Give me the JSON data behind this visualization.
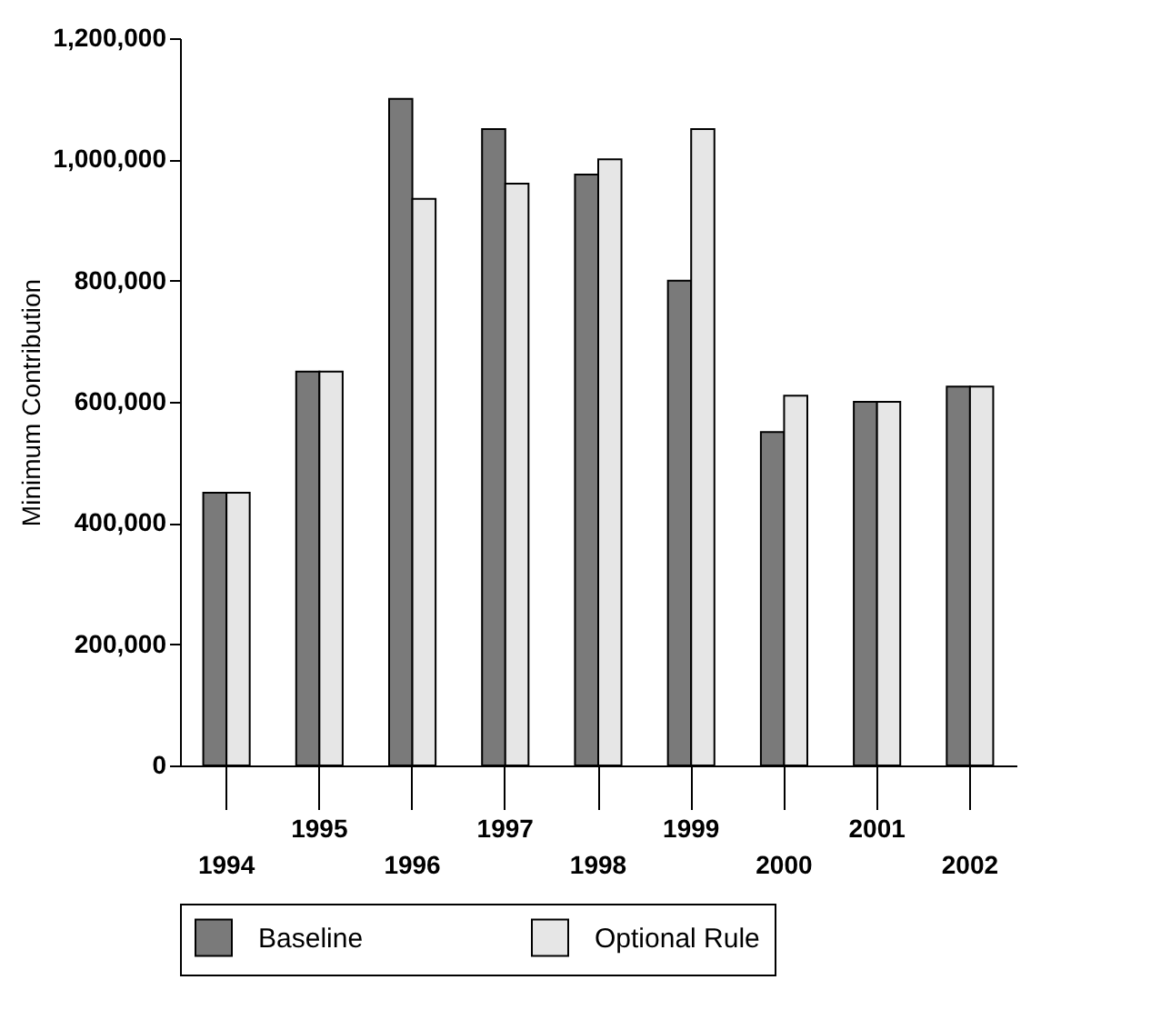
{
  "chart_data": {
    "type": "bar",
    "ylabel": "Minimum Contribution",
    "categories": [
      "1994",
      "1995",
      "1996",
      "1997",
      "1998",
      "1999",
      "2000",
      "2001",
      "2002"
    ],
    "series": [
      {
        "name": "Baseline",
        "color": "#7a7a7a",
        "values": [
          450000,
          650000,
          1100000,
          1050000,
          975000,
          800000,
          550000,
          600000,
          625000
        ]
      },
      {
        "name": "Optional Rule",
        "color": "#e6e6e6",
        "values": [
          450000,
          650000,
          935000,
          960000,
          1000000,
          1050000,
          610000,
          600000,
          625000
        ]
      }
    ],
    "ylim": [
      0,
      1200000
    ],
    "yticks": [
      0,
      {
        "value": 200000,
        "label": "200,000"
      },
      {
        "value": 400000,
        "label": "400,000"
      },
      {
        "value": 600000,
        "label": "600,000"
      },
      {
        "value": 800000,
        "label": "800,000"
      },
      {
        "value": 1000000,
        "label": "1,000,000"
      },
      {
        "value": 1200000,
        "label": "1,200,000"
      }
    ],
    "grid": false,
    "legend": "bottom"
  }
}
